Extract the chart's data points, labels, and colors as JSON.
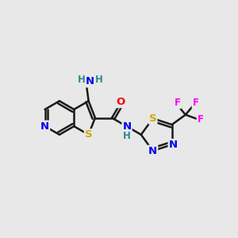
{
  "bg_color": "#e8e8e8",
  "bond_color": "#1a1a1a",
  "bond_width": 1.8,
  "atom_colors": {
    "N": "#0000ee",
    "S": "#ccaa00",
    "O": "#ff0000",
    "F": "#ff00ff",
    "H": "#2e8b8b",
    "C": "#1a1a1a"
  },
  "font_size": 9.5,
  "fig_size": [
    3.0,
    3.0
  ],
  "dpi": 100
}
